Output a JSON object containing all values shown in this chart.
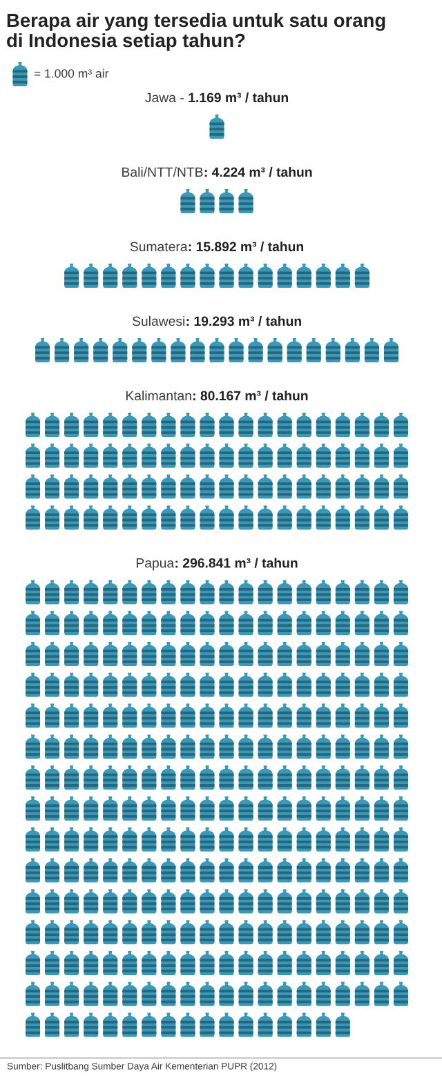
{
  "chart_data": {
    "type": "other",
    "title": "Berapa air yang tersedia untuk satu orang\ndi Indonesia setiap tahun?",
    "categories": [
      "Jawa -",
      "Bali/NTT/NTB",
      "Sumatera",
      "Sulawesi",
      "Kalimantan",
      "Papua"
    ],
    "values": [
      1.169,
      4.224,
      15.892,
      19.293,
      80.167,
      296.841
    ],
    "value_labels": [
      "1.169 m³ / tahun",
      ": 4.224 m³ / tahun",
      ": 15.892 m³ / tahun",
      ": 19.293 m³ / tahun",
      ": 80.167 m³ / tahun",
      ": 296.841 m³ / tahun"
    ],
    "color": "#3a98b8",
    "annotations": [
      "= 1.000 m³ air",
      "Sumber: Puslitbang Sumber Daya Air Kementerian PUPR (2012)"
    ]
  }
}
